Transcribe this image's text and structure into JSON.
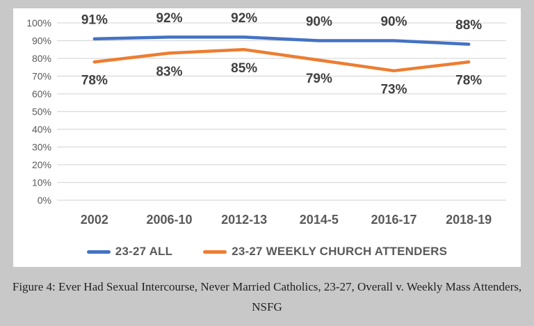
{
  "page": {
    "background_color": "#c8c8c8",
    "panel_color": "#ffffff"
  },
  "chart_data": {
    "type": "line",
    "title": "",
    "categories": [
      "2002",
      "2006-10",
      "2012-13",
      "2014-5",
      "2016-17",
      "2018-19"
    ],
    "series": [
      {
        "name": "23-27 ALL",
        "color": "#4472c4",
        "values": [
          91,
          92,
          92,
          90,
          90,
          88
        ],
        "label_position": "above"
      },
      {
        "name": "23-27 WEEKLY CHURCH ATTENDERS",
        "color": "#ed7d31",
        "values": [
          78,
          83,
          85,
          79,
          73,
          78
        ],
        "label_position": "below"
      }
    ],
    "data_labels": {
      "shown": true,
      "format": "percent",
      "color": "#404040"
    },
    "y_axis": {
      "min": 0,
      "max": 100,
      "step": 10,
      "tick_labels": [
        "0%",
        "10%",
        "20%",
        "30%",
        "40%",
        "50%",
        "60%",
        "70%",
        "80%",
        "90%",
        "100%"
      ],
      "label_color": "#595959"
    },
    "x_axis": {
      "label_color": "#595959"
    },
    "grid": true,
    "gridline_color": "#d9d9d9",
    "legend_position": "bottom"
  },
  "caption": {
    "line1": "Figure 4: Ever Had Sexual Intercourse, Never Married Catholics, 23-27, Overall v. Weekly Mass Attenders,",
    "line2": "NSFG"
  }
}
